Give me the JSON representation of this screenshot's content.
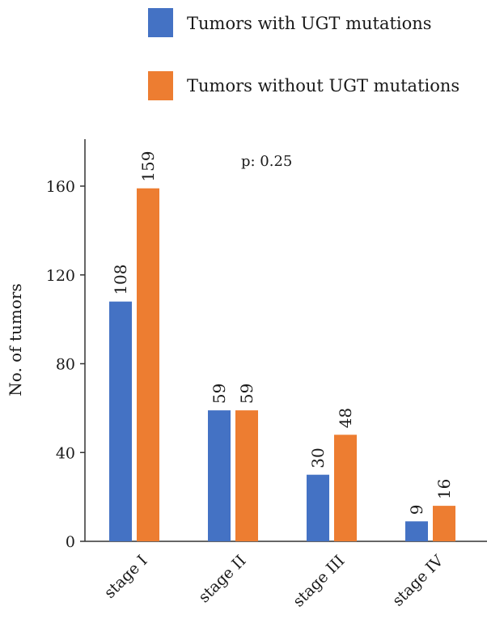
{
  "chart_data": {
    "type": "bar",
    "xlabel": "",
    "ylabel": "No. of tumors",
    "ylim": [
      0,
      180
    ],
    "yticks": [
      0,
      40,
      80,
      120,
      160
    ],
    "categories": [
      "stage I",
      "stage II",
      "stage III",
      "stage IV"
    ],
    "series": [
      {
        "name": "Tumors with UGT mutations",
        "color": "#4472C4",
        "values": [
          108,
          59,
          30,
          9
        ]
      },
      {
        "name": "Tumors without UGT mutations",
        "color": "#ED7D31",
        "values": [
          159,
          59,
          48,
          16
        ]
      }
    ],
    "annotation": "p: 0.25",
    "legend_position": "top",
    "grid": false
  }
}
